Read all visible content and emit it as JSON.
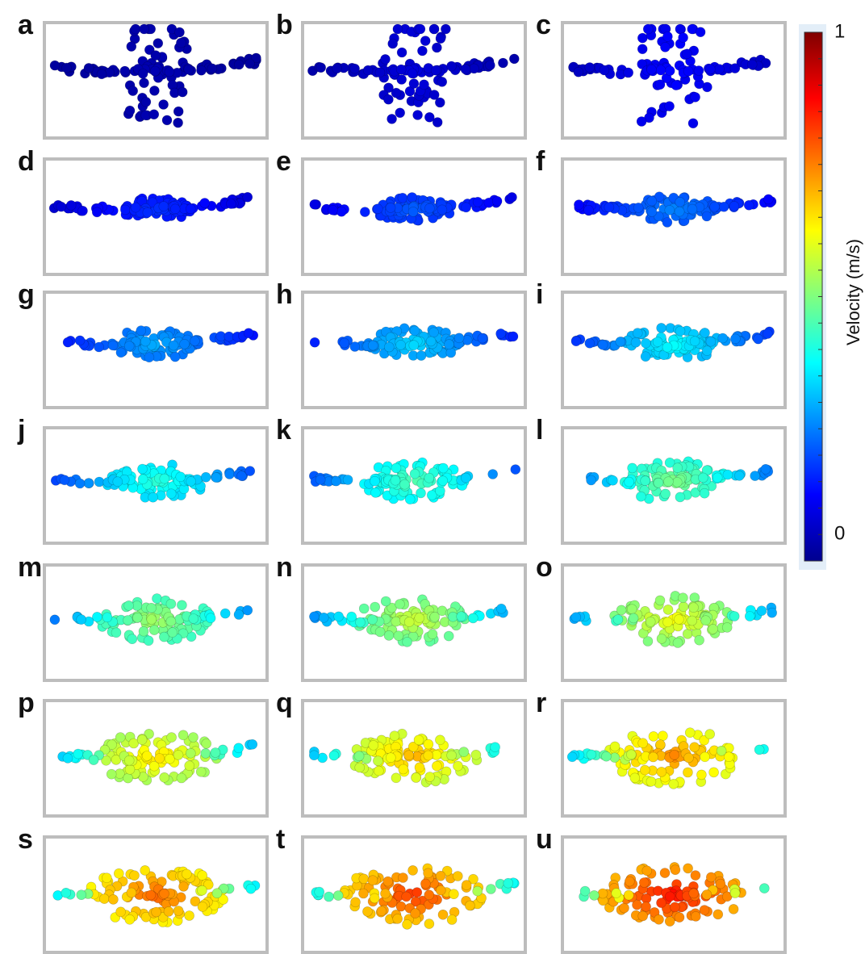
{
  "panels": [
    {
      "label": "a"
    },
    {
      "label": "b"
    },
    {
      "label": "c"
    },
    {
      "label": "d"
    },
    {
      "label": "e"
    },
    {
      "label": "f"
    },
    {
      "label": "g"
    },
    {
      "label": "h"
    },
    {
      "label": "i"
    },
    {
      "label": "j"
    },
    {
      "label": "k"
    },
    {
      "label": "l"
    },
    {
      "label": "m"
    },
    {
      "label": "n"
    },
    {
      "label": "o"
    },
    {
      "label": "p"
    },
    {
      "label": "q"
    },
    {
      "label": "r"
    },
    {
      "label": "s"
    },
    {
      "label": "t"
    },
    {
      "label": "u"
    }
  ],
  "colorbar": {
    "label": "Velocity (m/s)",
    "range": [
      0,
      1
    ],
    "ticks": [
      0,
      1
    ]
  }
}
